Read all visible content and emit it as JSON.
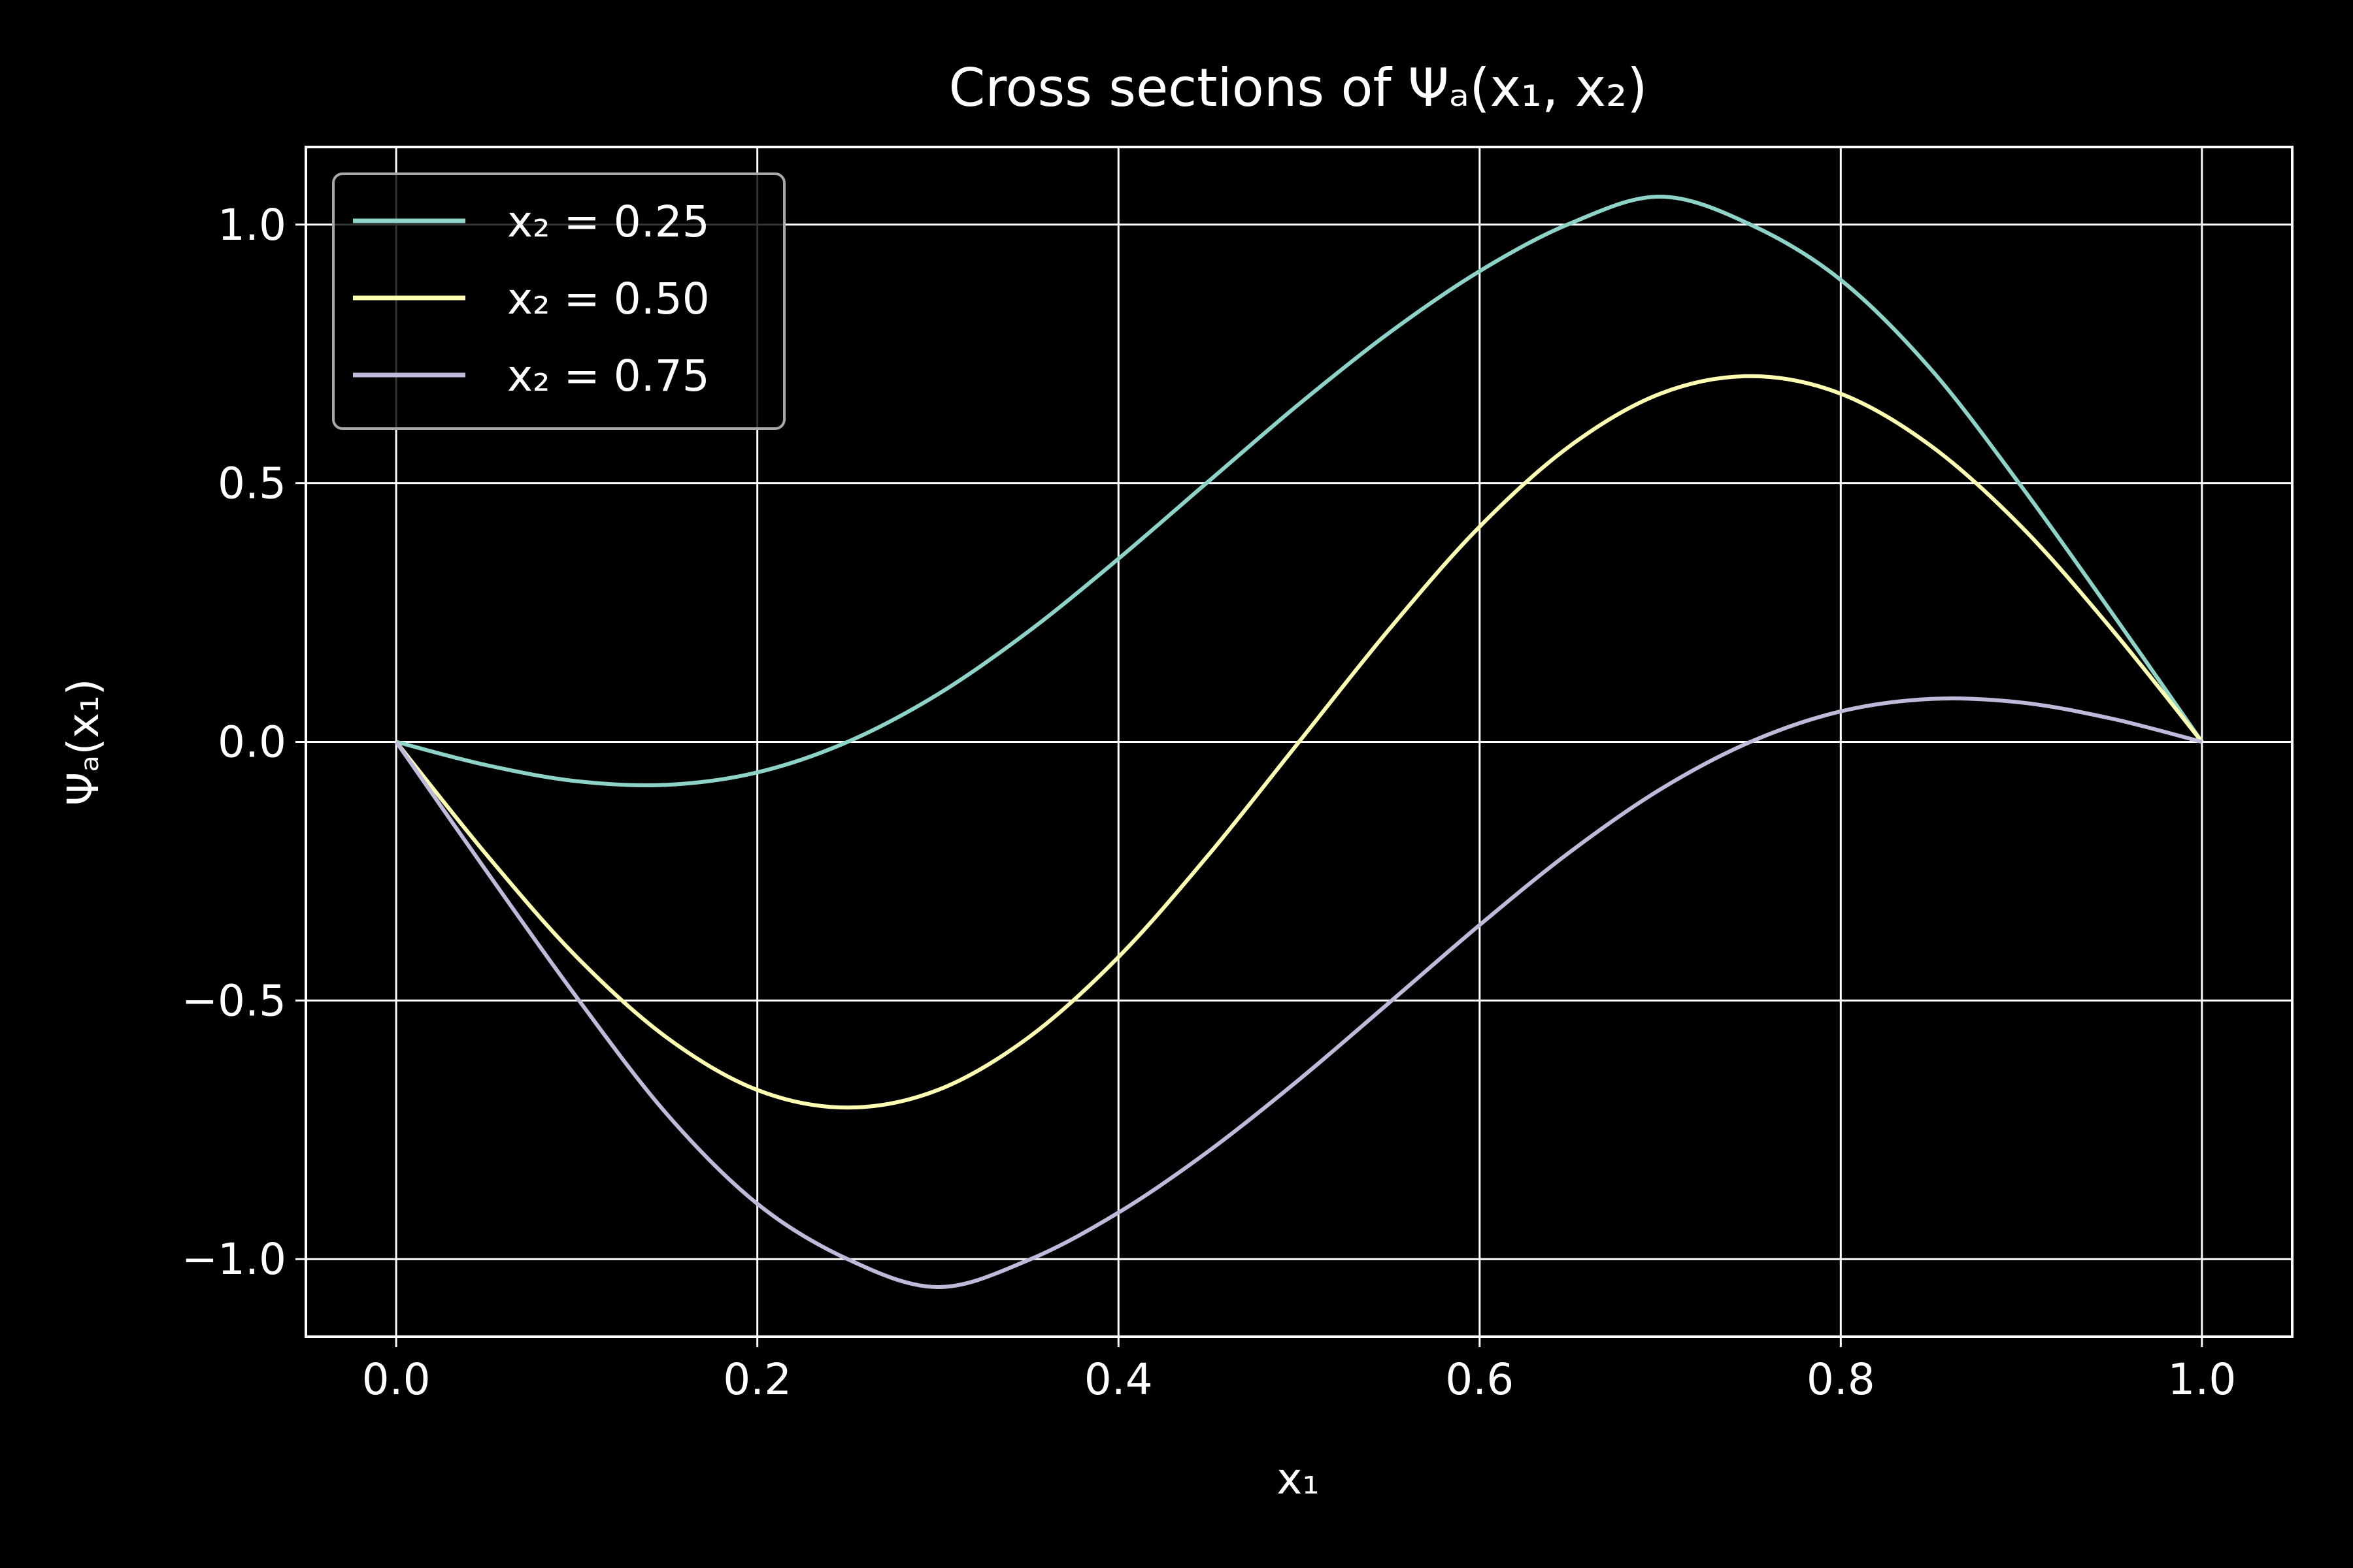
{
  "chart_data": {
    "type": "line",
    "title": "Cross sections of Ψₐ(x₁, x₂)",
    "xlabel": "x₁",
    "ylabel": "Ψₐ(x₁)",
    "xlim": [
      -0.05,
      1.05
    ],
    "ylim": [
      -1.15,
      1.15
    ],
    "x_ticks": [
      0.0,
      0.2,
      0.4,
      0.6,
      0.8,
      1.0
    ],
    "x_tick_labels": [
      "0.0",
      "0.2",
      "0.4",
      "0.6",
      "0.8",
      "1.0"
    ],
    "y_ticks": [
      -1.0,
      -0.5,
      0.0,
      0.5,
      1.0
    ],
    "y_tick_labels": [
      "−1.0",
      "−0.5",
      "0.0",
      "0.5",
      "1.0"
    ],
    "grid": true,
    "legend_position": "top-left",
    "background": "#000000",
    "foreground": "#ffffff",
    "series": [
      {
        "name": "x₂ = 0.25",
        "color": "#8dd3c7",
        "x": [
          0.0,
          0.05,
          0.1,
          0.15,
          0.2,
          0.25,
          0.3,
          0.35,
          0.4,
          0.45,
          0.5,
          0.55,
          0.6,
          0.65,
          0.7,
          0.75,
          0.8,
          0.85,
          0.9,
          0.95,
          1.0
        ],
        "y": [
          0.0,
          -0.045,
          -0.076,
          -0.083,
          -0.059,
          0.0,
          0.092,
          0.213,
          0.354,
          0.504,
          0.653,
          0.791,
          0.91,
          1.002,
          1.054,
          1.0,
          0.893,
          0.72,
          0.494,
          0.25,
          0.0
        ]
      },
      {
        "name": "x₂ = 0.50",
        "color": "#ffffb3",
        "x": [
          0.0,
          0.05,
          0.1,
          0.15,
          0.2,
          0.25,
          0.3,
          0.35,
          0.4,
          0.45,
          0.5,
          0.55,
          0.6,
          0.65,
          0.7,
          0.75,
          0.8,
          0.85,
          0.9,
          0.95,
          1.0
        ],
        "y": [
          0.0,
          -0.218,
          -0.416,
          -0.572,
          -0.673,
          -0.707,
          -0.673,
          -0.572,
          -0.416,
          -0.218,
          0.0,
          0.218,
          0.416,
          0.572,
          0.673,
          0.707,
          0.673,
          0.572,
          0.416,
          0.218,
          0.0
        ]
      },
      {
        "name": "x₂ = 0.75",
        "color": "#bebada",
        "x": [
          0.0,
          0.05,
          0.1,
          0.15,
          0.2,
          0.25,
          0.3,
          0.35,
          0.4,
          0.45,
          0.5,
          0.55,
          0.6,
          0.65,
          0.7,
          0.75,
          0.8,
          0.85,
          0.9,
          0.95,
          1.0
        ],
        "y": [
          0.0,
          -0.25,
          -0.494,
          -0.72,
          -0.893,
          -1.0,
          -1.054,
          -1.002,
          -0.91,
          -0.791,
          -0.653,
          -0.504,
          -0.354,
          -0.213,
          -0.092,
          0.0,
          0.059,
          0.083,
          0.076,
          0.045,
          0.0
        ]
      }
    ]
  }
}
